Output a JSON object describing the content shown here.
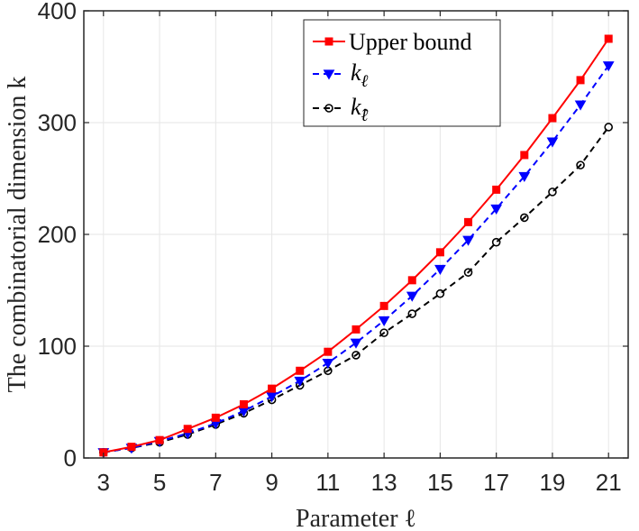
{
  "chart_data": {
    "type": "line",
    "xlabel": "Parameter ℓ",
    "ylabel": "The combinatorial dimension k",
    "xlim": [
      2.3,
      21.7
    ],
    "ylim": [
      0,
      400
    ],
    "xticks": [
      3,
      5,
      7,
      9,
      11,
      13,
      15,
      17,
      19,
      21
    ],
    "yticks": [
      0,
      100,
      200,
      300,
      400
    ],
    "grid": true,
    "legend_position": "top-right",
    "x": [
      3,
      4,
      5,
      6,
      7,
      8,
      9,
      10,
      11,
      12,
      13,
      14,
      15,
      16,
      17,
      18,
      19,
      20,
      21
    ],
    "series": [
      {
        "name": "Upper bound",
        "color": "#ff0000",
        "line_style": "solid",
        "marker": "square",
        "values": [
          5,
          10,
          16,
          26,
          36,
          48,
          62,
          78,
          95,
          115,
          136,
          159,
          184,
          211,
          240,
          271,
          304,
          338,
          375
        ]
      },
      {
        "name": "kℓ",
        "color": "#0000ff",
        "line_style": "dashed",
        "marker": "triangle-down",
        "values": [
          5,
          9,
          15,
          22,
          31,
          42,
          55,
          69,
          85,
          103,
          123,
          145,
          169,
          195,
          223,
          252,
          283,
          316,
          351
        ]
      },
      {
        "name": "k̂ℓ",
        "color": "#000000",
        "line_style": "dashed",
        "marker": "circle",
        "values": [
          5,
          9,
          14,
          21,
          30,
          40,
          52,
          65,
          78,
          92,
          112,
          129,
          147,
          166,
          193,
          215,
          238,
          262,
          296
        ]
      }
    ]
  }
}
